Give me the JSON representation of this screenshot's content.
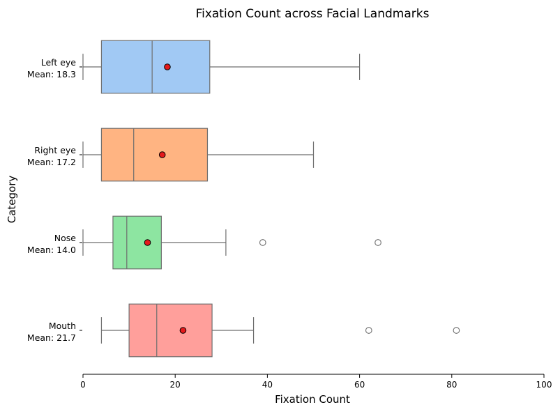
{
  "chart_data": {
    "type": "boxplot",
    "orientation": "horizontal",
    "title": "Fixation Count across Facial Landmarks",
    "xlabel": "Fixation Count",
    "ylabel": "Category",
    "xlim": [
      0,
      100
    ],
    "xticks": [
      0,
      20,
      40,
      60,
      80,
      100
    ],
    "xtick_labels": [
      "0",
      "20",
      "40",
      "60",
      "80",
      "100"
    ],
    "grid": false,
    "categories": [
      {
        "name": "Left eye",
        "mean_label": "Mean: 18.3",
        "whisker_low": 0,
        "q1": 4,
        "median": 15,
        "q3": 27.5,
        "whisker_high": 60,
        "mean": 18.3,
        "outliers": [],
        "color": "#a1c9f4"
      },
      {
        "name": "Right eye",
        "mean_label": "Mean: 17.2",
        "whisker_low": 0,
        "q1": 4,
        "median": 11,
        "q3": 27,
        "whisker_high": 50,
        "mean": 17.2,
        "outliers": [],
        "color": "#ffb482"
      },
      {
        "name": "Nose",
        "mean_label": "Mean: 14.0",
        "whisker_low": 0,
        "q1": 6.5,
        "median": 9.5,
        "q3": 17,
        "whisker_high": 31,
        "mean": 14.0,
        "outliers": [
          39,
          64
        ],
        "color": "#8de5a1"
      },
      {
        "name": "Mouth",
        "mean_label": "Mean: 21.7",
        "whisker_low": 4,
        "q1": 10,
        "median": 16,
        "q3": 28,
        "whisker_high": 37,
        "mean": 21.7,
        "outliers": [
          62,
          81
        ],
        "color": "#ff9f9b"
      }
    ],
    "mean_marker_color": "#e41a1c"
  }
}
